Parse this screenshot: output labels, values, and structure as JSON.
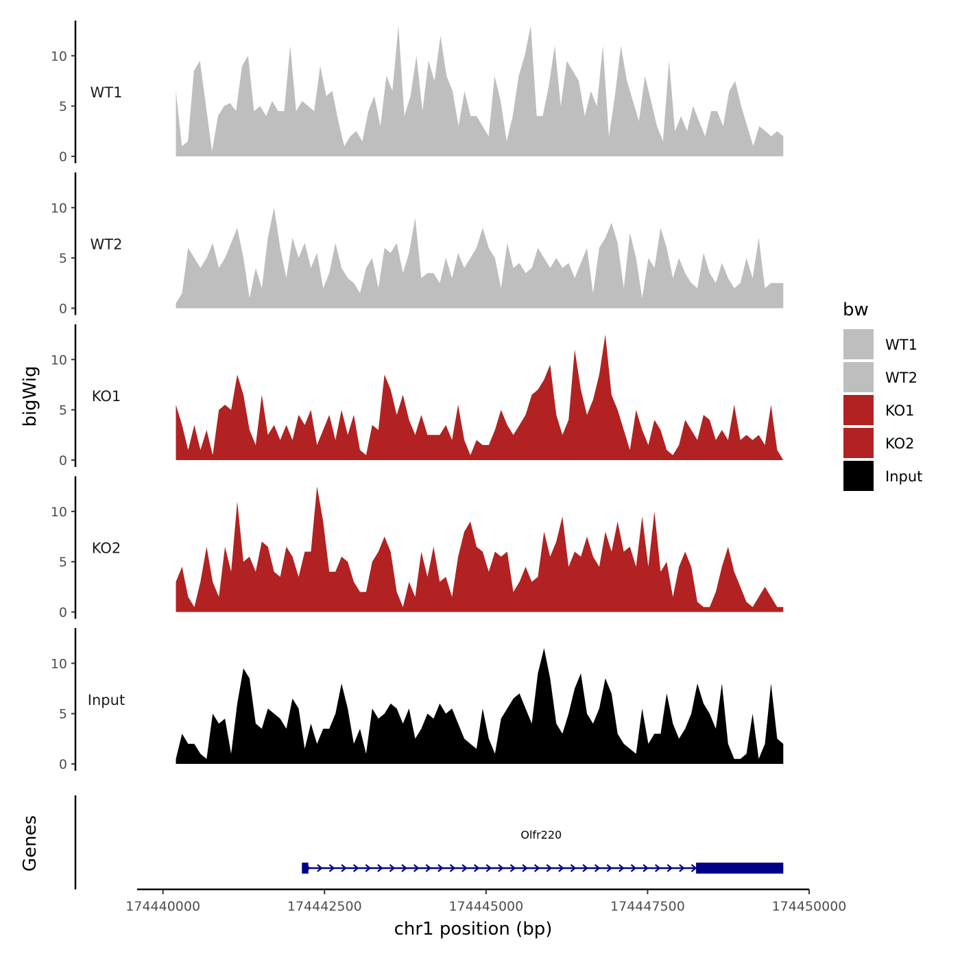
{
  "chart_data": {
    "type": "area",
    "chromosome": "chr1",
    "xlabel": "chr1 position (bp)",
    "ylabel": "bigWig",
    "genes_label": "Genes",
    "xlim": [
      174439600,
      174450000
    ],
    "xticks": [
      174440000,
      174442500,
      174445000,
      174447500,
      174450000
    ],
    "xtick_labels": [
      "174440000",
      "174442500",
      "174445000",
      "174447500",
      "174450000"
    ],
    "ylim": [
      0,
      13.5
    ],
    "yticks": [
      0,
      5,
      10
    ],
    "ytick_labels": [
      "0",
      "5",
      "10"
    ],
    "x_start": 174440200,
    "x_end": 174449600,
    "legend": {
      "title": "bw",
      "entries": [
        {
          "label": "WT1",
          "color": "#bebebe"
        },
        {
          "label": "WT2",
          "color": "#bebebe"
        },
        {
          "label": "KO1",
          "color": "#b22222"
        },
        {
          "label": "KO2",
          "color": "#b22222"
        },
        {
          "label": "Input",
          "color": "#000000"
        }
      ]
    },
    "series": [
      {
        "name": "WT1",
        "color": "#bebebe",
        "values": [
          6.5,
          1.0,
          1.5,
          8.5,
          9.5,
          5.0,
          0.5,
          4.0,
          5.0,
          5.3,
          4.5,
          9.0,
          10.0,
          4.5,
          5.0,
          4.0,
          5.5,
          4.5,
          4.5,
          11.0,
          4.5,
          5.5,
          5.0,
          4.5,
          9.0,
          6.0,
          6.5,
          3.5,
          1.0,
          2.0,
          2.5,
          1.5,
          4.5,
          6.0,
          3.0,
          8.0,
          6.5,
          13.0,
          4.0,
          6.0,
          10.0,
          4.5,
          9.5,
          7.5,
          12.0,
          8.0,
          6.5,
          3.0,
          6.5,
          4.0,
          4.0,
          3.0,
          2.0,
          8.0,
          5.5,
          1.5,
          4.0,
          8.0,
          10.0,
          13.0,
          4.0,
          4.0,
          7.0,
          11.0,
          5.0,
          9.5,
          8.5,
          7.5,
          4.0,
          6.5,
          5.0,
          11.0,
          2.0,
          6.0,
          11.0,
          7.5,
          5.5,
          3.5,
          8.0,
          5.5,
          3.0,
          1.5,
          9.5,
          2.5,
          4.0,
          2.5,
          5.0,
          3.5,
          2.0,
          4.5,
          4.5,
          3.0,
          6.5,
          7.5,
          5.0,
          3.0,
          1.0,
          3.0,
          2.5,
          2.0,
          2.5,
          2.0
        ]
      },
      {
        "name": "WT2",
        "color": "#bebebe",
        "values": [
          0.5,
          1.5,
          6.0,
          5.0,
          4.0,
          5.0,
          6.5,
          4.0,
          5.0,
          6.5,
          8.0,
          5.0,
          1.0,
          4.0,
          2.0,
          7.0,
          10.0,
          6.0,
          3.0,
          7.0,
          5.0,
          6.5,
          4.0,
          5.5,
          2.0,
          3.5,
          6.5,
          4.0,
          3.0,
          2.5,
          1.5,
          4.0,
          5.0,
          2.0,
          6.0,
          5.5,
          6.5,
          3.5,
          5.5,
          9.0,
          3.0,
          3.5,
          3.5,
          2.5,
          5.0,
          3.0,
          5.5,
          4.0,
          5.0,
          6.0,
          8.0,
          6.0,
          5.0,
          2.0,
          6.5,
          4.0,
          4.5,
          3.5,
          4.0,
          6.0,
          5.0,
          4.0,
          5.0,
          4.0,
          4.5,
          3.0,
          4.5,
          6.0,
          1.5,
          6.0,
          7.0,
          8.5,
          6.5,
          2.0,
          7.5,
          5.0,
          1.0,
          5.0,
          4.0,
          8.0,
          6.0,
          3.0,
          5.0,
          3.5,
          2.5,
          2.0,
          5.5,
          3.5,
          2.5,
          4.5,
          3.0,
          2.0,
          2.5,
          5.0,
          3.0,
          7.0,
          2.0,
          2.5,
          2.5,
          2.5
        ]
      },
      {
        "name": "KO1",
        "color": "#b22222",
        "values": [
          5.5,
          3.5,
          1.0,
          3.5,
          1.0,
          3.0,
          0.5,
          5.0,
          5.5,
          5.0,
          8.5,
          6.5,
          3.0,
          1.5,
          6.5,
          2.5,
          3.5,
          2.0,
          3.5,
          2.0,
          4.5,
          3.5,
          5.0,
          1.5,
          3.0,
          4.5,
          2.0,
          5.0,
          2.5,
          4.5,
          1.0,
          0.5,
          3.5,
          3.0,
          8.5,
          7.0,
          4.5,
          6.5,
          4.0,
          2.5,
          4.5,
          2.5,
          2.5,
          2.5,
          3.5,
          2.0,
          5.5,
          2.0,
          0.5,
          2.0,
          1.5,
          1.5,
          3.0,
          5.0,
          3.5,
          2.5,
          3.5,
          4.5,
          6.5,
          7.0,
          8.0,
          9.5,
          4.5,
          2.5,
          4.0,
          11.0,
          7.0,
          4.5,
          6.0,
          8.5,
          12.5,
          6.5,
          5.0,
          3.0,
          1.0,
          5.0,
          3.0,
          1.5,
          4.0,
          3.0,
          1.0,
          0.5,
          1.5,
          4.0,
          3.0,
          2.0,
          4.5,
          4.0,
          2.0,
          3.0,
          2.0,
          5.5,
          2.0,
          2.5,
          2.0,
          2.5,
          1.5,
          5.5,
          1.0,
          0.0
        ]
      },
      {
        "name": "KO2",
        "color": "#b22222",
        "values": [
          3.0,
          4.5,
          1.5,
          0.5,
          3.0,
          6.5,
          3.0,
          1.5,
          6.5,
          4.0,
          11.0,
          5.0,
          5.5,
          4.0,
          7.0,
          6.5,
          4.0,
          3.5,
          6.5,
          5.5,
          3.5,
          6.0,
          6.0,
          12.5,
          9.0,
          4.0,
          4.0,
          5.5,
          5.0,
          3.0,
          2.0,
          2.0,
          5.0,
          6.0,
          7.5,
          6.0,
          2.0,
          0.5,
          3.0,
          1.5,
          6.0,
          3.5,
          6.5,
          3.0,
          3.5,
          1.5,
          5.5,
          8.0,
          9.0,
          6.5,
          6.0,
          4.0,
          6.0,
          5.5,
          6.0,
          2.0,
          3.0,
          4.5,
          3.0,
          3.5,
          8.0,
          5.5,
          7.0,
          9.5,
          4.5,
          6.0,
          5.5,
          7.5,
          5.5,
          4.5,
          8.0,
          6.0,
          9.0,
          6.0,
          6.5,
          4.5,
          9.5,
          4.5,
          10.0,
          4.0,
          5.0,
          1.5,
          4.5,
          6.0,
          4.5,
          1.0,
          0.5,
          0.5,
          2.0,
          4.5,
          6.5,
          4.0,
          2.5,
          1.0,
          0.5,
          1.5,
          2.5,
          1.5,
          0.5,
          0.5
        ]
      },
      {
        "name": "Input",
        "color": "#000000",
        "values": [
          0.5,
          3.0,
          2.0,
          2.0,
          1.0,
          0.5,
          5.0,
          4.0,
          4.5,
          1.0,
          6.0,
          9.5,
          8.5,
          4.0,
          3.5,
          5.5,
          5.0,
          4.5,
          3.5,
          6.5,
          5.5,
          1.5,
          4.0,
          2.0,
          3.5,
          3.5,
          5.0,
          8.0,
          5.5,
          2.0,
          3.5,
          1.0,
          5.5,
          4.5,
          5.0,
          6.0,
          5.5,
          4.0,
          5.5,
          2.5,
          3.5,
          5.0,
          4.5,
          6.0,
          5.0,
          5.5,
          4.0,
          2.5,
          2.0,
          1.5,
          5.5,
          2.5,
          1.0,
          4.5,
          5.5,
          6.5,
          7.0,
          5.5,
          4.0,
          9.0,
          11.5,
          8.5,
          4.0,
          3.0,
          5.0,
          7.5,
          9.0,
          5.0,
          4.0,
          5.5,
          8.5,
          7.0,
          3.0,
          2.0,
          1.5,
          1.0,
          5.5,
          2.0,
          3.0,
          3.0,
          7.0,
          4.0,
          2.5,
          3.5,
          5.0,
          8.0,
          6.0,
          5.0,
          3.5,
          8.0,
          2.0,
          0.5,
          0.5,
          1.0,
          5.0,
          0.5,
          2.0,
          8.0,
          2.5,
          2.0
        ]
      }
    ],
    "genes": [
      {
        "name": "Olfr220",
        "color": "#00008b",
        "strand": "+",
        "start": 174442150,
        "end": 174449600,
        "exons": [
          [
            174442150,
            174442250
          ],
          [
            174448250,
            174449600
          ]
        ],
        "thick_exons": [
          [
            174448250,
            174449600
          ]
        ]
      }
    ]
  }
}
